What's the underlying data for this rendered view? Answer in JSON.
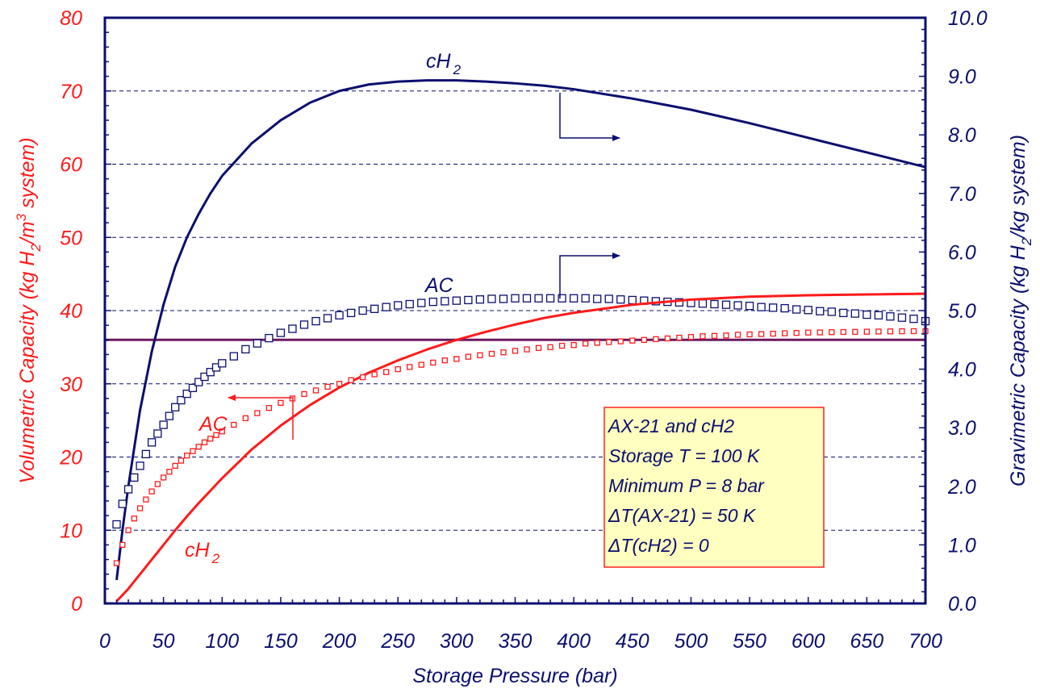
{
  "colors": {
    "left": "#ff1a1a",
    "right": "#0a0f6e",
    "target": "#6b1a5e",
    "grid": "#0a0f6e",
    "infobox_fill": "#ffffbf",
    "infobox_stroke": "#ff2020"
  },
  "chart_data": {
    "type": "line",
    "grid": "horizontal dashed",
    "x_axis": {
      "label": "Storage Pressure (bar)",
      "range": [
        0,
        700
      ],
      "ticks": [
        "0",
        "50",
        "100",
        "150",
        "200",
        "250",
        "300",
        "350",
        "400",
        "450",
        "500",
        "550",
        "600",
        "650",
        "700"
      ]
    },
    "y_left": {
      "label": "Volumetric Capacity (kg H2/m3 system)",
      "label_parts": {
        "pre": "Volumetric Capacity (kg H",
        "sub": "2",
        "mid": "/m",
        "sup": "3",
        "post": " system)"
      },
      "range": [
        0,
        80
      ],
      "ticks": [
        "0",
        "10",
        "20",
        "30",
        "40",
        "50",
        "60",
        "70",
        "80"
      ]
    },
    "y_right": {
      "label": "Gravimetric Capacity (kg H2/kg system)",
      "label_parts": {
        "pre": "Gravimetric Capacity (kg H",
        "sub": "2",
        "post": "/kg system)"
      },
      "range": [
        0,
        10
      ],
      "ticks": [
        "0.0",
        "1.0",
        "2.0",
        "3.0",
        "4.0",
        "5.0",
        "6.0",
        "7.0",
        "8.0",
        "9.0",
        "10.0"
      ]
    },
    "target_line": {
      "axis": "left",
      "y": 36
    },
    "series": [
      {
        "label": "cH2",
        "axis": "right",
        "style": "line",
        "color": "#0a0f6e",
        "points": [
          [
            10,
            0.4
          ],
          [
            15,
            1.25
          ],
          [
            20,
            2.0
          ],
          [
            30,
            3.3
          ],
          [
            40,
            4.3
          ],
          [
            50,
            5.1
          ],
          [
            60,
            5.75
          ],
          [
            70,
            6.25
          ],
          [
            80,
            6.65
          ],
          [
            90,
            7.0
          ],
          [
            100,
            7.3
          ],
          [
            125,
            7.85
          ],
          [
            150,
            8.25
          ],
          [
            175,
            8.55
          ],
          [
            200,
            8.75
          ],
          [
            225,
            8.86
          ],
          [
            250,
            8.91
          ],
          [
            275,
            8.93
          ],
          [
            300,
            8.93
          ],
          [
            325,
            8.91
          ],
          [
            350,
            8.88
          ],
          [
            375,
            8.84
          ],
          [
            400,
            8.78
          ],
          [
            450,
            8.62
          ],
          [
            500,
            8.43
          ],
          [
            550,
            8.2
          ],
          [
            600,
            7.95
          ],
          [
            650,
            7.7
          ],
          [
            700,
            7.45
          ]
        ]
      },
      {
        "label": "AC",
        "axis": "right",
        "style": "markers",
        "color": "#0a0f6e",
        "points": [
          [
            10,
            1.35
          ],
          [
            15,
            1.7
          ],
          [
            20,
            1.95
          ],
          [
            25,
            2.15
          ],
          [
            30,
            2.35
          ],
          [
            35,
            2.55
          ],
          [
            40,
            2.75
          ],
          [
            45,
            2.9
          ],
          [
            50,
            3.05
          ],
          [
            55,
            3.2
          ],
          [
            60,
            3.35
          ],
          [
            65,
            3.47
          ],
          [
            70,
            3.58
          ],
          [
            75,
            3.68
          ],
          [
            80,
            3.78
          ],
          [
            85,
            3.87
          ],
          [
            90,
            3.95
          ],
          [
            95,
            4.03
          ],
          [
            100,
            4.1
          ],
          [
            110,
            4.22
          ],
          [
            120,
            4.34
          ],
          [
            130,
            4.44
          ],
          [
            140,
            4.53
          ],
          [
            150,
            4.62
          ],
          [
            160,
            4.69
          ],
          [
            170,
            4.76
          ],
          [
            180,
            4.82
          ],
          [
            190,
            4.87
          ],
          [
            200,
            4.92
          ],
          [
            210,
            4.96
          ],
          [
            220,
            5.0
          ],
          [
            230,
            5.03
          ],
          [
            240,
            5.06
          ],
          [
            250,
            5.09
          ],
          [
            260,
            5.11
          ],
          [
            270,
            5.13
          ],
          [
            280,
            5.15
          ],
          [
            290,
            5.16
          ],
          [
            300,
            5.17
          ],
          [
            310,
            5.18
          ],
          [
            320,
            5.19
          ],
          [
            330,
            5.2
          ],
          [
            340,
            5.2
          ],
          [
            350,
            5.21
          ],
          [
            360,
            5.21
          ],
          [
            370,
            5.21
          ],
          [
            380,
            5.21
          ],
          [
            390,
            5.21
          ],
          [
            400,
            5.21
          ],
          [
            410,
            5.21
          ],
          [
            420,
            5.2
          ],
          [
            430,
            5.2
          ],
          [
            440,
            5.19
          ],
          [
            450,
            5.18
          ],
          [
            460,
            5.17
          ],
          [
            470,
            5.16
          ],
          [
            480,
            5.15
          ],
          [
            490,
            5.14
          ],
          [
            500,
            5.13
          ],
          [
            510,
            5.12
          ],
          [
            520,
            5.11
          ],
          [
            530,
            5.1
          ],
          [
            540,
            5.09
          ],
          [
            550,
            5.08
          ],
          [
            560,
            5.06
          ],
          [
            570,
            5.05
          ],
          [
            580,
            5.04
          ],
          [
            590,
            5.02
          ],
          [
            600,
            5.01
          ],
          [
            610,
            4.99
          ],
          [
            620,
            4.98
          ],
          [
            630,
            4.96
          ],
          [
            640,
            4.95
          ],
          [
            650,
            4.93
          ],
          [
            660,
            4.92
          ],
          [
            670,
            4.9
          ],
          [
            680,
            4.88
          ],
          [
            690,
            4.86
          ],
          [
            700,
            4.82
          ]
        ]
      },
      {
        "label": "cH2",
        "axis": "left",
        "style": "line",
        "color": "#ff1a1a",
        "points": [
          [
            10,
            0.3
          ],
          [
            20,
            2.0
          ],
          [
            30,
            4.0
          ],
          [
            40,
            6.0
          ],
          [
            50,
            8.0
          ],
          [
            60,
            10.0
          ],
          [
            70,
            11.9
          ],
          [
            80,
            13.7
          ],
          [
            90,
            15.4
          ],
          [
            100,
            17.1
          ],
          [
            125,
            21.0
          ],
          [
            150,
            24.3
          ],
          [
            175,
            27.1
          ],
          [
            200,
            29.5
          ],
          [
            225,
            31.5
          ],
          [
            250,
            33.2
          ],
          [
            275,
            34.7
          ],
          [
            300,
            36.0
          ],
          [
            325,
            37.1
          ],
          [
            350,
            38.1
          ],
          [
            375,
            39.0
          ],
          [
            400,
            39.7
          ],
          [
            450,
            40.8
          ],
          [
            500,
            41.5
          ],
          [
            550,
            41.9
          ],
          [
            600,
            42.1
          ],
          [
            650,
            42.2
          ],
          [
            700,
            42.3
          ]
        ]
      },
      {
        "label": "AC",
        "axis": "left",
        "style": "markers",
        "color": "#ff1a1a",
        "points": [
          [
            10,
            5.5
          ],
          [
            15,
            8.0
          ],
          [
            20,
            10.0
          ],
          [
            25,
            11.6
          ],
          [
            30,
            13.0
          ],
          [
            35,
            14.2
          ],
          [
            40,
            15.3
          ],
          [
            45,
            16.3
          ],
          [
            50,
            17.2
          ],
          [
            55,
            18.0
          ],
          [
            60,
            18.8
          ],
          [
            65,
            19.5
          ],
          [
            70,
            20.2
          ],
          [
            75,
            20.8
          ],
          [
            80,
            21.4
          ],
          [
            85,
            22.0
          ],
          [
            90,
            22.5
          ],
          [
            95,
            23.0
          ],
          [
            100,
            23.5
          ],
          [
            110,
            24.4
          ],
          [
            120,
            25.3
          ],
          [
            130,
            26.0
          ],
          [
            140,
            26.7
          ],
          [
            150,
            27.4
          ],
          [
            160,
            28.0
          ],
          [
            170,
            28.6
          ],
          [
            180,
            29.1
          ],
          [
            190,
            29.6
          ],
          [
            200,
            30.0
          ],
          [
            210,
            30.5
          ],
          [
            220,
            30.9
          ],
          [
            230,
            31.3
          ],
          [
            240,
            31.6
          ],
          [
            250,
            32.0
          ],
          [
            260,
            32.3
          ],
          [
            270,
            32.6
          ],
          [
            280,
            32.9
          ],
          [
            290,
            33.2
          ],
          [
            300,
            33.4
          ],
          [
            310,
            33.7
          ],
          [
            320,
            33.9
          ],
          [
            330,
            34.1
          ],
          [
            340,
            34.3
          ],
          [
            350,
            34.5
          ],
          [
            360,
            34.7
          ],
          [
            370,
            34.9
          ],
          [
            380,
            35.0
          ],
          [
            390,
            35.2
          ],
          [
            400,
            35.3
          ],
          [
            410,
            35.5
          ],
          [
            420,
            35.6
          ],
          [
            430,
            35.7
          ],
          [
            440,
            35.8
          ],
          [
            450,
            35.9
          ],
          [
            460,
            36.0
          ],
          [
            470,
            36.1
          ],
          [
            480,
            36.2
          ],
          [
            490,
            36.3
          ],
          [
            500,
            36.4
          ],
          [
            510,
            36.5
          ],
          [
            520,
            36.55
          ],
          [
            530,
            36.6
          ],
          [
            540,
            36.7
          ],
          [
            550,
            36.75
          ],
          [
            560,
            36.8
          ],
          [
            570,
            36.85
          ],
          [
            580,
            36.9
          ],
          [
            590,
            36.95
          ],
          [
            600,
            37.0
          ],
          [
            610,
            37.02
          ],
          [
            620,
            37.05
          ],
          [
            630,
            37.08
          ],
          [
            640,
            37.1
          ],
          [
            650,
            37.12
          ],
          [
            660,
            37.14
          ],
          [
            670,
            37.16
          ],
          [
            680,
            37.18
          ],
          [
            690,
            37.19
          ],
          [
            700,
            37.2
          ]
        ]
      }
    ],
    "annotations": {
      "ch2_top": {
        "text": "cH",
        "sub": "2"
      },
      "ac_top": "AC",
      "ac_left": "AC",
      "ch2_bottom": {
        "text": "cH",
        "sub": "2"
      }
    },
    "infobox_lines": [
      "AX-21 and cH2",
      "Storage T = 100 K",
      "Minimum P = 8 bar",
      "ΔT(AX-21) = 50 K",
      "ΔT(cH2) = 0"
    ]
  }
}
